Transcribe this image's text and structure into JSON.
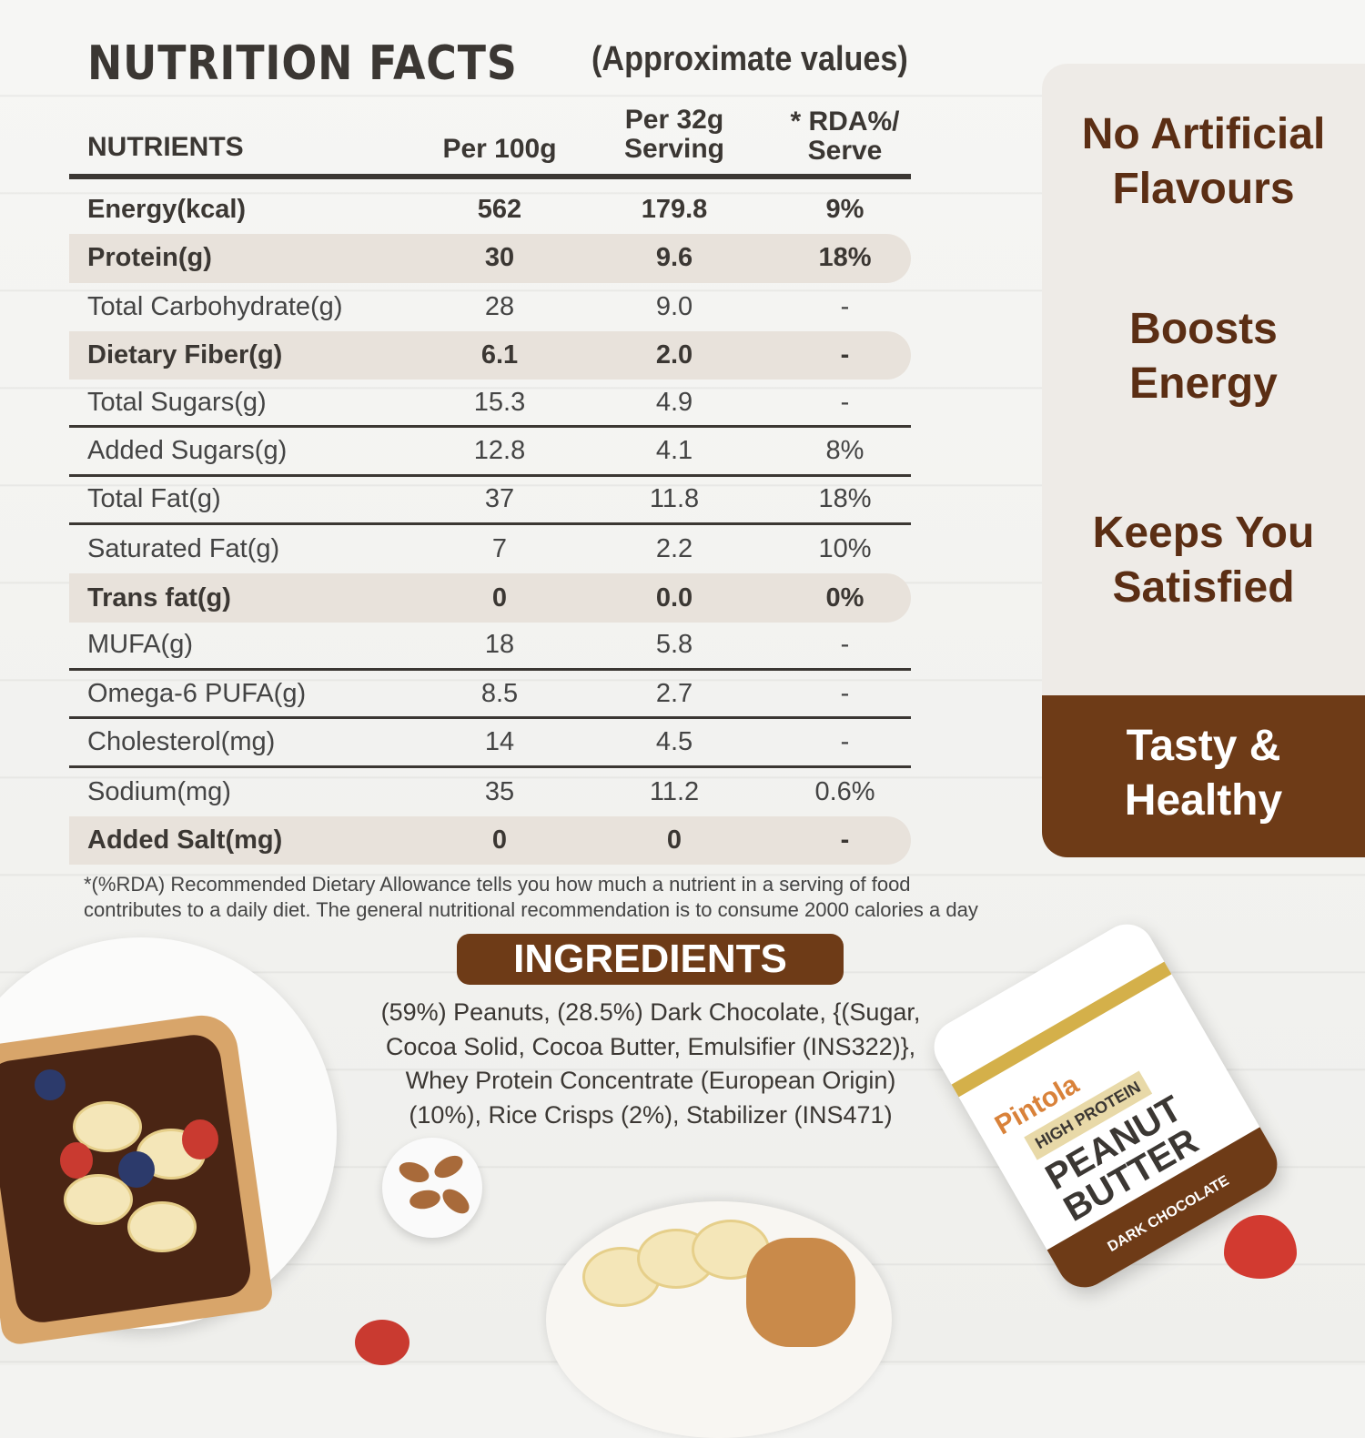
{
  "header": {
    "title": "NUTRITION FACTS",
    "subtitle": "(Approximate values)"
  },
  "table": {
    "columns": [
      "NUTRIENTS",
      "Per 100g",
      "Per 32g Serving",
      "* RDA%/ Serve"
    ],
    "rows": [
      {
        "nutrient": "Energy(kcal)",
        "per100": "562",
        "perServing": "179.8",
        "rda": "9%"
      },
      {
        "nutrient": "Protein(g)",
        "per100": "30",
        "perServing": "9.6",
        "rda": "18%"
      },
      {
        "nutrient": "Total Carbohydrate(g)",
        "per100": "28",
        "perServing": "9.0",
        "rda": "-"
      },
      {
        "nutrient": "Dietary Fiber(g)",
        "per100": "6.1",
        "perServing": "2.0",
        "rda": "-"
      },
      {
        "nutrient": "Total Sugars(g)",
        "per100": "15.3",
        "perServing": "4.9",
        "rda": "-"
      },
      {
        "nutrient": "Added Sugars(g)",
        "per100": "12.8",
        "perServing": "4.1",
        "rda": "8%"
      },
      {
        "nutrient": "Total Fat(g)",
        "per100": "37",
        "perServing": "11.8",
        "rda": "18%"
      },
      {
        "nutrient": "Saturated Fat(g)",
        "per100": "7",
        "perServing": "2.2",
        "rda": "10%"
      },
      {
        "nutrient": "Trans fat(g)",
        "per100": "0",
        "perServing": "0.0",
        "rda": "0%"
      },
      {
        "nutrient": "MUFA(g)",
        "per100": "18",
        "perServing": "5.8",
        "rda": "-"
      },
      {
        "nutrient": "Omega-6 PUFA(g)",
        "per100": "8.5",
        "perServing": "2.7",
        "rda": "-"
      },
      {
        "nutrient": "Cholesterol(mg)",
        "per100": "14",
        "perServing": "4.5",
        "rda": "-"
      },
      {
        "nutrient": "Sodium(mg)",
        "per100": "35",
        "perServing": "11.2",
        "rda": "0.6%"
      },
      {
        "nutrient": "Added Salt(mg)",
        "per100": "0",
        "perServing": "0",
        "rda": "-"
      }
    ]
  },
  "footnote": "*(%RDA) Recommended Dietary Allowance tells you how much a nutrient in a serving of food contributes to a daily diet. The general nutritional recommendation is to consume 2000 calories a day",
  "benefits": [
    {
      "line1": "No Artificial",
      "line2": "Flavours"
    },
    {
      "line1": "Boosts",
      "line2": "Energy"
    },
    {
      "line1": "Keeps You",
      "line2": "Satisfied"
    },
    {
      "line1": "Tasty &",
      "line2": "Healthy"
    }
  ],
  "ingredients": {
    "title": "INGREDIENTS",
    "lines": [
      "(59%) Peanuts, (28.5%) Dark Chocolate, {(Sugar,",
      "Cocoa Solid, Cocoa Butter, Emulsifier (INS322)},",
      "Whey Protein Concentrate (European Origin)",
      "(10%), Rice Crisps (2%), Stabilizer (INS471)"
    ]
  },
  "product": {
    "brand": "Pintola",
    "tag": "HIGH PROTEIN",
    "name_line1": "PEANUT",
    "name_line2": "BUTTER",
    "variant": "DARK CHOCOLATE"
  }
}
